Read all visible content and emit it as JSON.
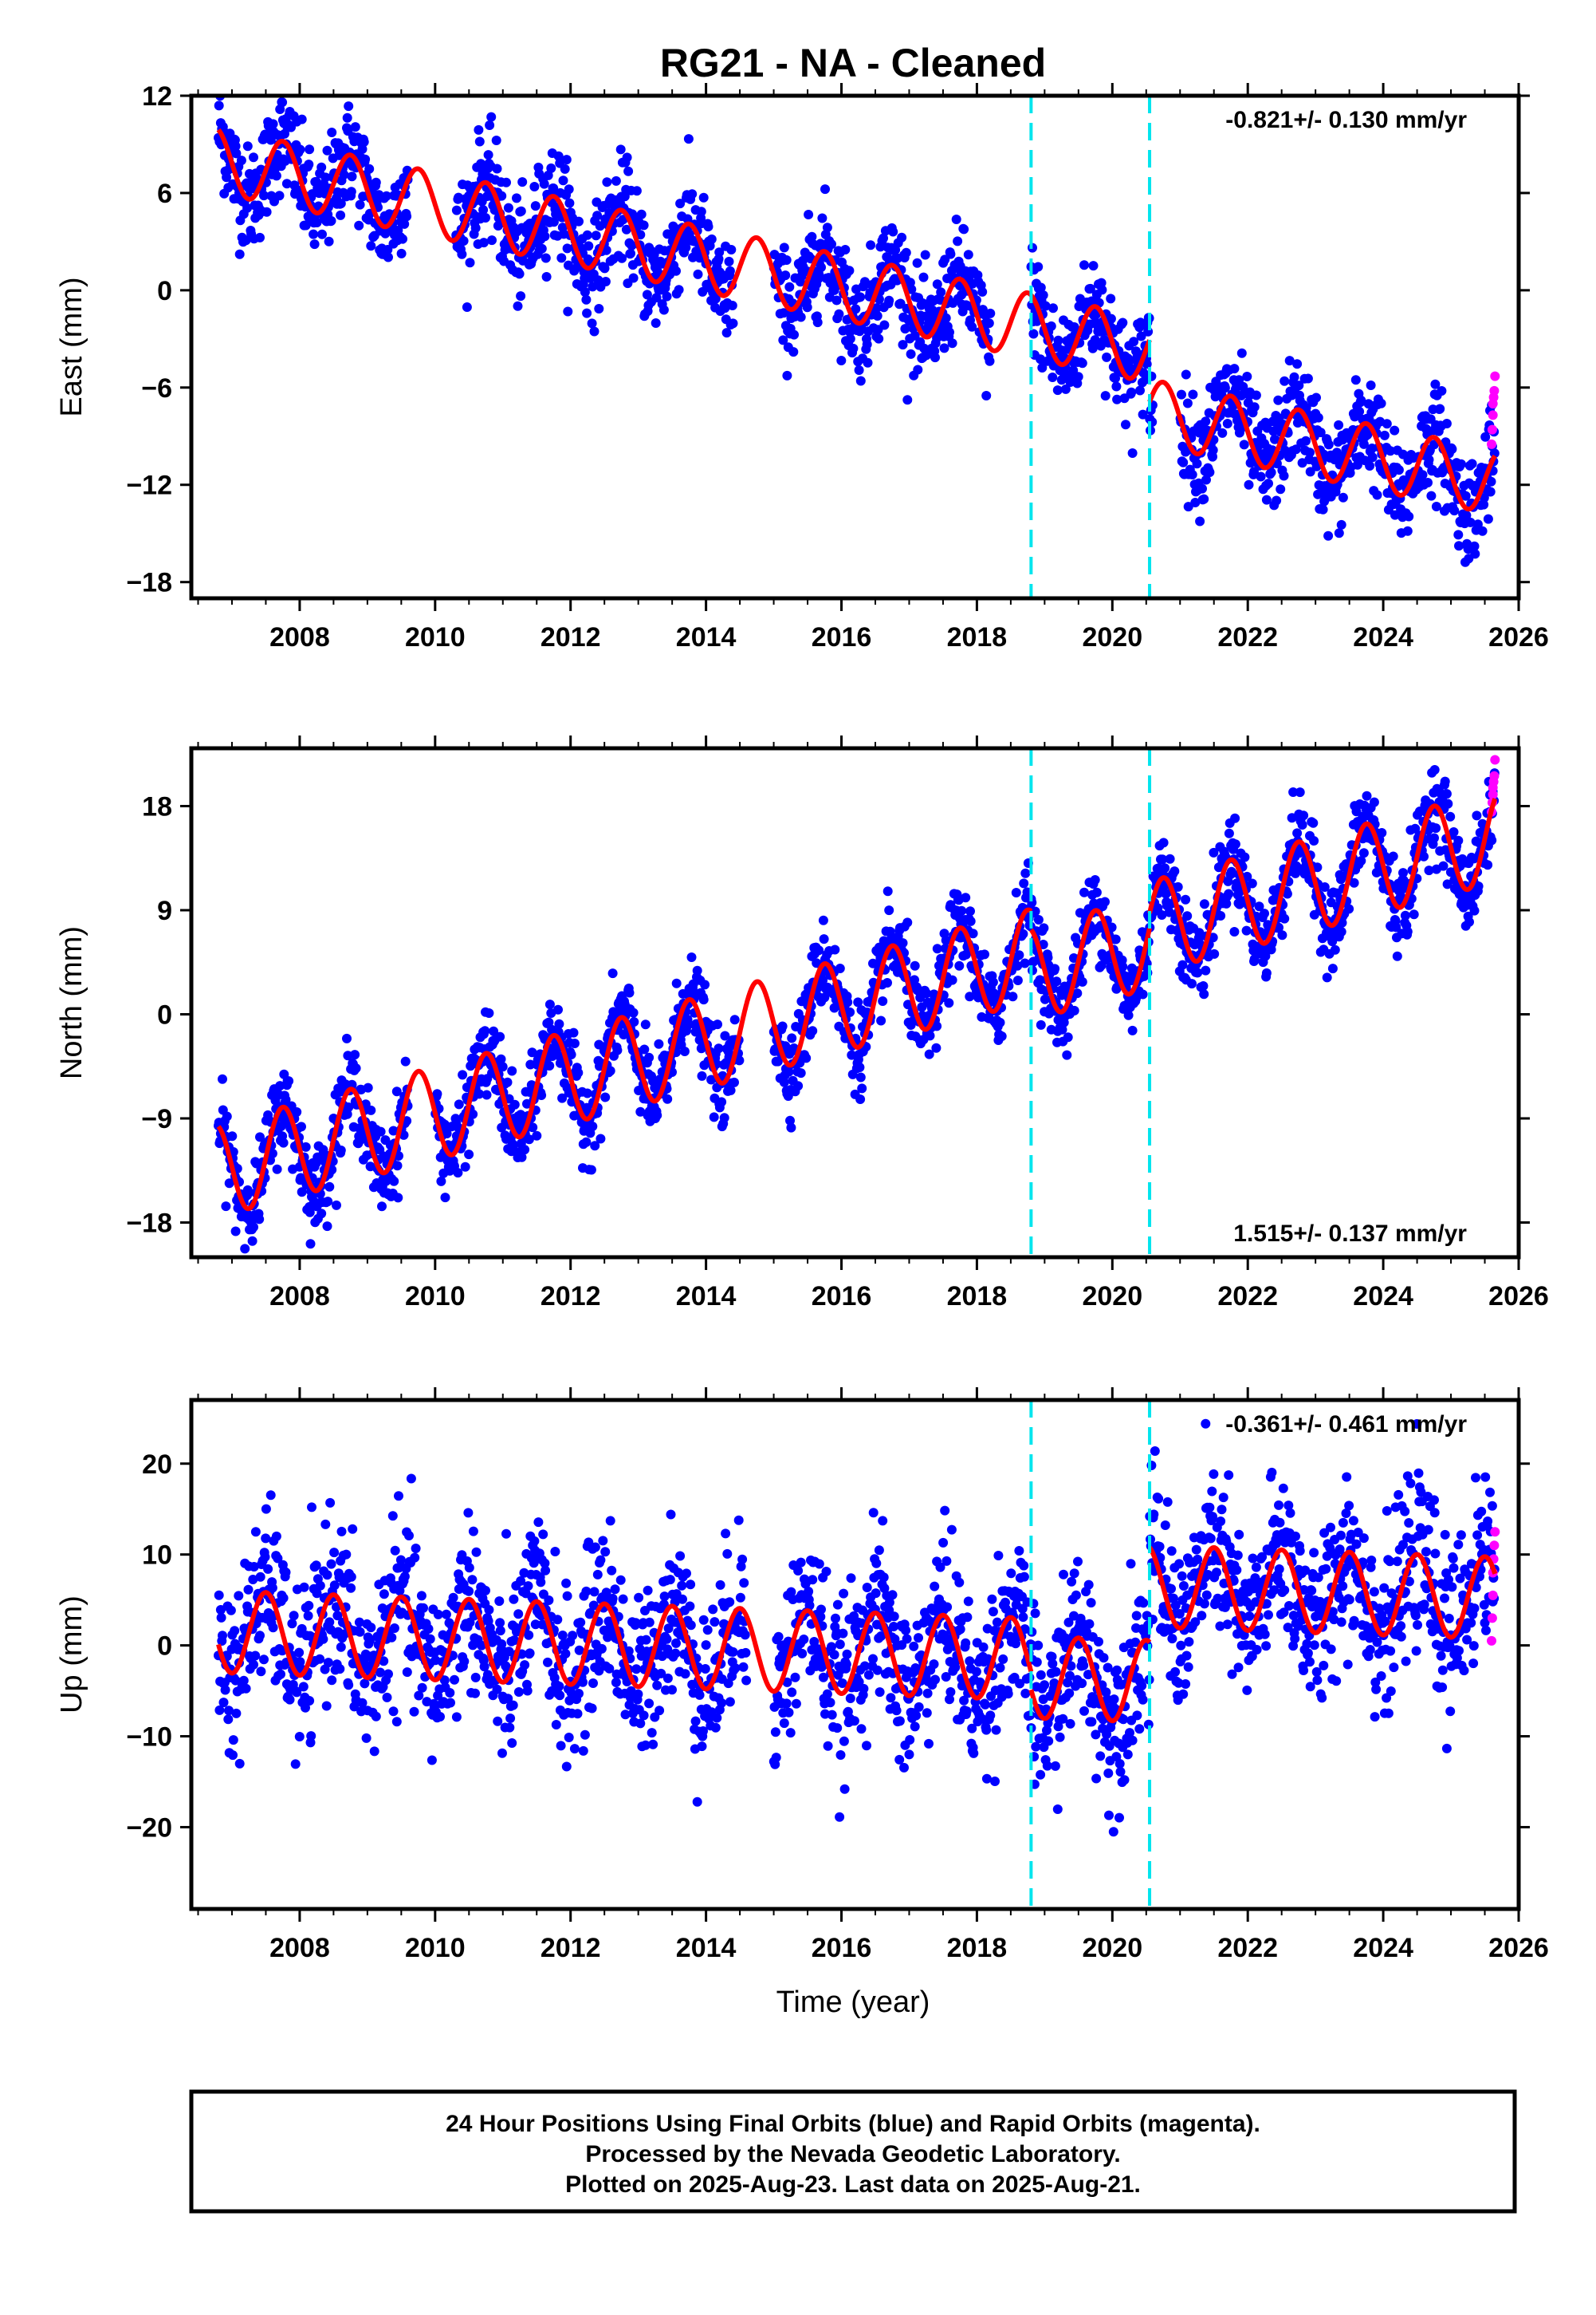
{
  "title": "RG21  - NA - Cleaned",
  "xlabel": "Time (year)",
  "footer": {
    "line1": "24 Hour Positions Using Final Orbits (blue) and Rapid Orbits (magenta).",
    "line2": "Processed by the Nevada Geodetic Laboratory.",
    "line3": "Plotted on 2025-Aug-23. Last data on 2025-Aug-21."
  },
  "colors": {
    "final_orbits": "#0000ff",
    "rapid_orbits": "#ff00ff",
    "model_fit": "#ff0000",
    "equipment_change": "#00e5ee"
  },
  "chart_data": [
    {
      "type": "scatter",
      "component": "east",
      "ylabel": "East (mm)",
      "rate_label": "-0.821+/- 0.130 mm/yr",
      "rate_position": "top-right",
      "xlim": [
        2006.4,
        2026.0
      ],
      "ylim": [
        -19.0,
        12.0
      ],
      "y_ticks": [
        12,
        6,
        0,
        -6,
        -12,
        -18
      ],
      "y_tick_labels": [
        "12",
        "6",
        "0",
        "−6",
        "−12",
        "−18"
      ],
      "x_ticks": [
        2008,
        2010,
        2012,
        2014,
        2016,
        2018,
        2020,
        2022,
        2024,
        2026
      ],
      "x_tick_labels": [
        "2008",
        "2010",
        "2012",
        "2014",
        "2016",
        "2018",
        "2020",
        "2022",
        "2024",
        "2026"
      ],
      "breaks": [
        2018.8,
        2020.55
      ],
      "model": {
        "segments": [
          {
            "start": 2006.8,
            "end": 2018.8,
            "y0": 8.0,
            "rate": -0.85,
            "amplitude": 2.0
          },
          {
            "start": 2018.8,
            "end": 2020.55,
            "y0": -2.2,
            "rate": -0.85,
            "amplitude": 2.0
          },
          {
            "start": 2020.55,
            "end": 2025.65,
            "y0": -7.5,
            "rate": -0.85,
            "amplitude": 2.0
          }
        ],
        "phase": 0.5,
        "gaps": [
          [
            2009.6,
            2010.3
          ],
          [
            2014.4,
            2015.0
          ],
          [
            2018.2,
            2018.8
          ],
          [
            2020.6,
            2021.0
          ]
        ]
      },
      "scatter_spread": 1.6,
      "rapid_points": [
        [
          2025.6,
          -9.5
        ],
        [
          2025.61,
          -8.6
        ],
        [
          2025.62,
          -7.7
        ],
        [
          2025.62,
          -7.0
        ],
        [
          2025.63,
          -6.6
        ],
        [
          2025.64,
          -6.2
        ],
        [
          2025.65,
          -5.3
        ]
      ]
    },
    {
      "type": "scatter",
      "component": "north",
      "ylabel": "North (mm)",
      "rate_label": "1.515+/- 0.137 mm/yr",
      "rate_position": "bottom-right",
      "xlim": [
        2006.4,
        2026.0
      ],
      "ylim": [
        -21.0,
        23.0
      ],
      "y_ticks": [
        18,
        9,
        0,
        -9,
        -18
      ],
      "y_tick_labels": [
        "18",
        "9",
        "0",
        "−9",
        "−18"
      ],
      "x_ticks": [
        2008,
        2010,
        2012,
        2014,
        2016,
        2018,
        2020,
        2022,
        2024,
        2026
      ],
      "x_tick_labels": [
        "2008",
        "2010",
        "2012",
        "2014",
        "2016",
        "2018",
        "2020",
        "2022",
        "2024",
        "2026"
      ],
      "breaks": [
        2018.8,
        2020.55
      ],
      "model": {
        "segments": [
          {
            "start": 2006.8,
            "end": 2018.8,
            "y0": -13.5,
            "rate": 1.55,
            "amplitude": 4.0
          },
          {
            "start": 2018.8,
            "end": 2020.55,
            "y0": 3.5,
            "rate": 1.55,
            "amplitude": 4.0
          },
          {
            "start": 2020.55,
            "end": 2025.65,
            "y0": 7.5,
            "rate": 1.55,
            "amplitude": 4.0
          }
        ],
        "phase": 0.5,
        "gaps": [
          [
            2009.6,
            2010.0
          ],
          [
            2014.5,
            2015.0
          ]
        ]
      },
      "scatter_spread": 1.8,
      "rapid_points": [
        [
          2025.6,
          17.5
        ],
        [
          2025.61,
          18.3
        ],
        [
          2025.62,
          19.0
        ],
        [
          2025.62,
          19.6
        ],
        [
          2025.63,
          20.1
        ],
        [
          2025.64,
          20.6
        ],
        [
          2025.65,
          22.0
        ]
      ]
    },
    {
      "type": "scatter",
      "component": "up",
      "ylabel": "Up (mm)",
      "rate_label": "-0.361+/- 0.461 mm/yr",
      "rate_position": "top-right",
      "xlim": [
        2006.4,
        2026.0
      ],
      "ylim": [
        -29.0,
        27.0
      ],
      "y_ticks": [
        20,
        10,
        0,
        -10,
        -20
      ],
      "y_tick_labels": [
        "20",
        "10",
        "0",
        "−10",
        "−20"
      ],
      "x_ticks": [
        2008,
        2010,
        2012,
        2014,
        2016,
        2018,
        2020,
        2022,
        2024,
        2026
      ],
      "x_tick_labels": [
        "2008",
        "2010",
        "2012",
        "2014",
        "2016",
        "2018",
        "2020",
        "2022",
        "2024",
        "2026"
      ],
      "breaks": [
        2018.8,
        2020.55
      ],
      "model": {
        "segments": [
          {
            "start": 2006.8,
            "end": 2018.8,
            "y0": 1.5,
            "rate": -0.25,
            "amplitude": 4.5
          },
          {
            "start": 2018.8,
            "end": 2020.55,
            "y0": -3.5,
            "rate": -0.25,
            "amplitude": 4.5
          },
          {
            "start": 2020.55,
            "end": 2025.65,
            "y0": 6.5,
            "rate": -0.25,
            "amplitude": 4.5
          }
        ],
        "phase": 0.75,
        "gaps": [
          [
            2014.6,
            2015.0
          ]
        ]
      },
      "scatter_spread": 4.5,
      "rapid_points": [
        [
          2025.6,
          0.5
        ],
        [
          2025.61,
          3.0
        ],
        [
          2025.62,
          5.5
        ],
        [
          2025.62,
          8.0
        ],
        [
          2025.63,
          9.5
        ],
        [
          2025.64,
          11.0
        ],
        [
          2025.65,
          12.5
        ]
      ]
    }
  ]
}
